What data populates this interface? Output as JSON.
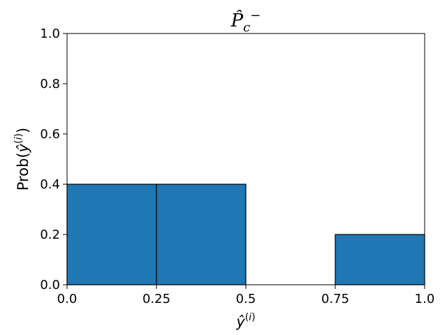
{
  "chart_data": {
    "type": "bar",
    "title": "P̂c⁻",
    "xlabel": "ŷ(i)",
    "ylabel": "Prob(ŷ(i))",
    "bins": [
      {
        "x0": 0.0,
        "x1": 0.25,
        "value": 0.4
      },
      {
        "x0": 0.25,
        "x1": 0.5,
        "value": 0.4
      },
      {
        "x0": 0.5,
        "x1": 0.75,
        "value": 0.0
      },
      {
        "x0": 0.75,
        "x1": 1.0,
        "value": 0.2
      }
    ],
    "xlim": [
      0.0,
      1.0
    ],
    "ylim": [
      0.0,
      1.0
    ],
    "xticks": [
      0.0,
      0.25,
      0.5,
      0.75,
      1.0
    ],
    "xtick_labels": [
      "0.0",
      "0.25",
      "0.5",
      "0.75",
      "1.0"
    ],
    "yticks": [
      0.0,
      0.2,
      0.4,
      0.6,
      0.8,
      1.0
    ],
    "ytick_labels": [
      "0.0",
      "0.2",
      "0.4",
      "0.6",
      "0.8",
      "1.0"
    ],
    "grid": false,
    "bar_color": "#1f77b4"
  }
}
